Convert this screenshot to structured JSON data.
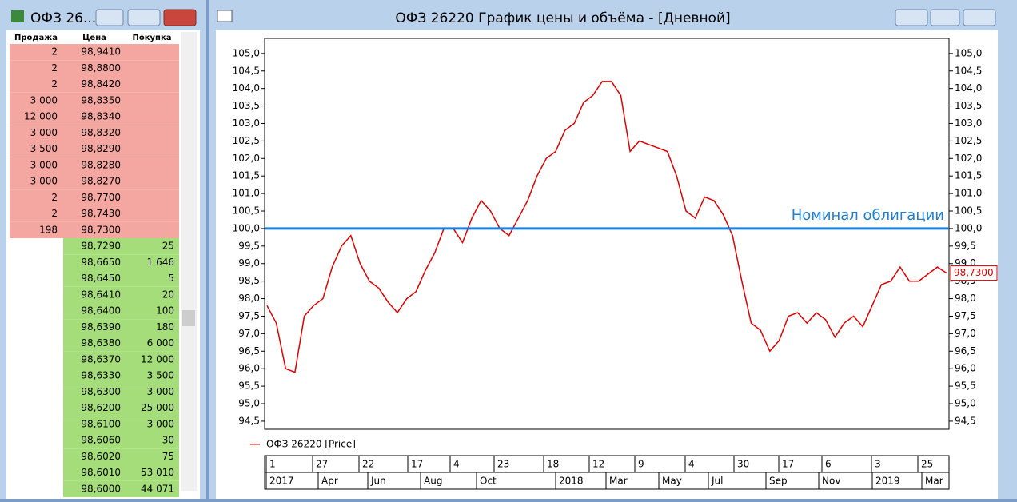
{
  "order_book": {
    "title": "ОФЗ 26...",
    "headers": [
      "Продажа",
      "Цена",
      "Покупка"
    ],
    "sell_rows": [
      [
        "2",
        "98,9410"
      ],
      [
        "2",
        "98,8800"
      ],
      [
        "2",
        "98,8420"
      ],
      [
        "3 000",
        "98,8350"
      ],
      [
        "12 000",
        "98,8340"
      ],
      [
        "3 000",
        "98,8320"
      ],
      [
        "3 500",
        "98,8290"
      ],
      [
        "3 000",
        "98,8280"
      ],
      [
        "3 000",
        "98,8270"
      ],
      [
        "2",
        "98,7700"
      ],
      [
        "2",
        "98,7430"
      ],
      [
        "198",
        "98,7300"
      ]
    ],
    "buy_rows": [
      [
        "98,7290",
        "25"
      ],
      [
        "98,6650",
        "1 646"
      ],
      [
        "98,6450",
        "5"
      ],
      [
        "98,6410",
        "20"
      ],
      [
        "98,6400",
        "100"
      ],
      [
        "98,6390",
        "180"
      ],
      [
        "98,6380",
        "6 000"
      ],
      [
        "98,6370",
        "12 000"
      ],
      [
        "98,6330",
        "3 500"
      ],
      [
        "98,6300",
        "3 000"
      ],
      [
        "98,6200",
        "25 000"
      ],
      [
        "98,6100",
        "3 000"
      ],
      [
        "98,6060",
        "30"
      ],
      [
        "98,6020",
        "75"
      ],
      [
        "98,6010",
        "53 010"
      ],
      [
        "98,6000",
        "44 071"
      ]
    ]
  },
  "chart_window": {
    "title": "ОФЗ 26220 График цены и объёма - [Дневной]"
  },
  "chart_data": {
    "type": "line",
    "series": [
      {
        "name": "ОФЗ 26220 [Price]",
        "color": "#e00000",
        "values": [
          97.8,
          97.3,
          96.0,
          95.9,
          97.5,
          97.8,
          98.0,
          98.9,
          99.5,
          99.8,
          99.0,
          98.5,
          98.3,
          97.9,
          97.6,
          98.0,
          98.2,
          98.8,
          99.3,
          100.0,
          100.0,
          99.6,
          100.3,
          100.8,
          100.5,
          100.0,
          99.8,
          100.3,
          100.8,
          101.5,
          102.0,
          102.2,
          102.8,
          103.0,
          103.6,
          103.8,
          104.2,
          104.2,
          103.8,
          102.2,
          102.5,
          102.4,
          102.3,
          102.2,
          101.5,
          100.5,
          100.3,
          100.9,
          100.8,
          100.4,
          99.8,
          98.5,
          97.3,
          97.1,
          96.5,
          96.8,
          97.5,
          97.6,
          97.3,
          97.6,
          97.4,
          96.9,
          97.3,
          97.5,
          97.2,
          97.8,
          98.4,
          98.5,
          98.9,
          98.5,
          98.5,
          98.7,
          98.9,
          98.73
        ]
      }
    ],
    "ylim": [
      94.27,
      105.43
    ],
    "yticks": [
      {
        "value": 94.5,
        "label": "94,5"
      },
      {
        "value": 95,
        "label": "95,0"
      },
      {
        "value": 95.5,
        "label": "95,5"
      },
      {
        "value": 96,
        "label": "96,0"
      },
      {
        "value": 96.5,
        "label": "96,5"
      },
      {
        "value": 97,
        "label": "97,0"
      },
      {
        "value": 97.5,
        "label": "97,5"
      },
      {
        "value": 98,
        "label": "98,0"
      },
      {
        "value": 98.5,
        "label": "98,5"
      },
      {
        "value": 99,
        "label": "99,0"
      },
      {
        "value": 99.5,
        "label": "99,5"
      },
      {
        "value": 100,
        "label": "100,0"
      },
      {
        "value": 100.5,
        "label": "100,5"
      },
      {
        "value": 101,
        "label": "101,0"
      },
      {
        "value": 101.5,
        "label": "101,5"
      },
      {
        "value": 102,
        "label": "102,0"
      },
      {
        "value": 102.5,
        "label": "102,5"
      },
      {
        "value": 103,
        "label": "103,0"
      },
      {
        "value": 103.5,
        "label": "103,5"
      },
      {
        "value": 104,
        "label": "104,0"
      },
      {
        "value": 104.5,
        "label": "104,5"
      },
      {
        "value": 105,
        "label": "105,0"
      }
    ],
    "reference_line": {
      "value": 100,
      "label": "Номинал облигации",
      "color": "#1e7fd6"
    },
    "last_value_label": {
      "value": 98.73,
      "label": "98,7300"
    },
    "date_axis": {
      "days": [
        "1",
        "27",
        "22",
        "17",
        "4",
        "23",
        "18",
        "12",
        "9",
        "4",
        "30",
        "17",
        "6",
        "3",
        "25"
      ],
      "months": [
        "2017",
        "Apr",
        "Jun",
        "Aug",
        "Oct",
        "2018",
        "Mar",
        "May",
        "Jul",
        "Sep",
        "Nov",
        "2019",
        "Mar"
      ]
    }
  }
}
